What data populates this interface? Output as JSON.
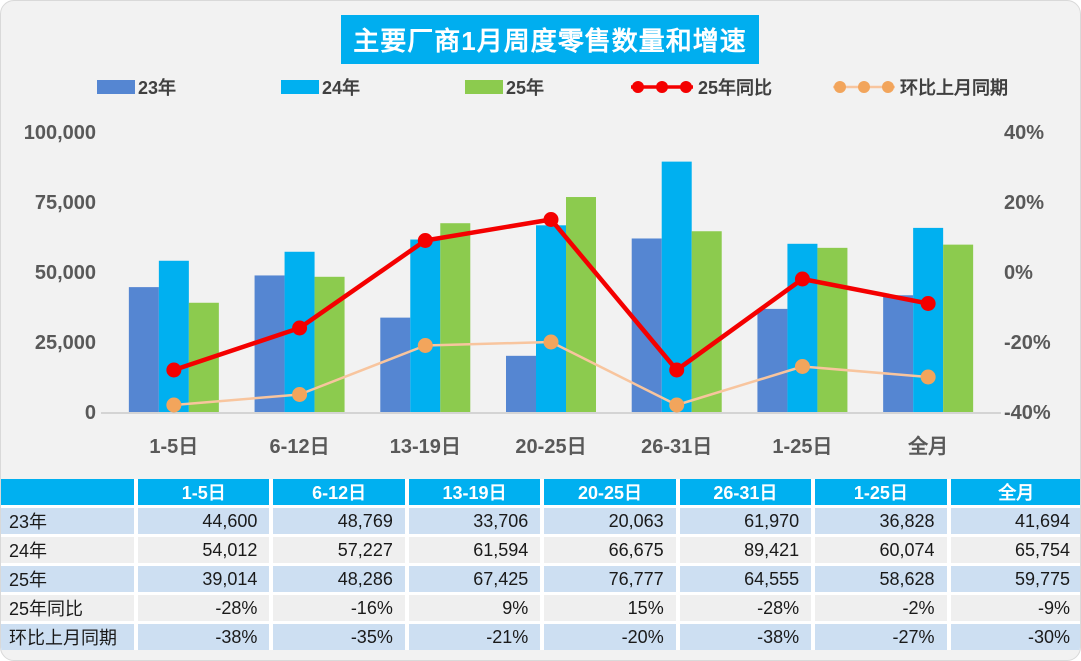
{
  "title": "主要厂商1月周度零售数量和增速",
  "legend": [
    {
      "label": "23年",
      "type": "bar-swatch",
      "color": "#5586D2"
    },
    {
      "label": "24年",
      "type": "bar-swatch",
      "color": "#00B0F0"
    },
    {
      "label": "25年",
      "type": "bar-swatch",
      "color": "#8CCB4E"
    },
    {
      "label": "25年同比",
      "type": "line-marker",
      "color": "#F40000",
      "line_color": "#F40000"
    },
    {
      "label": "环比上月同期",
      "type": "line-marker",
      "color": "#F2A55C",
      "line_color": "#F8C59E"
    }
  ],
  "chart_data": {
    "type": "bar",
    "subtype": "grouped-bars-with-overlay-lines",
    "categories": [
      "1-5日",
      "6-12日",
      "13-19日",
      "20-25日",
      "26-31日",
      "1-25日",
      "全月"
    ],
    "series": [
      {
        "name": "23年",
        "type": "bar",
        "axis": "left",
        "color": "#5586D2",
        "values": [
          44600,
          48769,
          33706,
          20063,
          61970,
          36828,
          41694
        ]
      },
      {
        "name": "24年",
        "type": "bar",
        "axis": "left",
        "color": "#00B0F0",
        "values": [
          54012,
          57227,
          61594,
          66675,
          89421,
          60074,
          65754
        ]
      },
      {
        "name": "25年",
        "type": "bar",
        "axis": "left",
        "color": "#8CCB4E",
        "values": [
          39014,
          48286,
          67425,
          76777,
          64555,
          58628,
          59775
        ]
      },
      {
        "name": "25年同比",
        "type": "line",
        "axis": "right",
        "color": "#F40000",
        "line_width": 4.5,
        "marker_r": 7.5,
        "values": [
          -28,
          -16,
          9,
          15,
          -28,
          -2,
          -9
        ]
      },
      {
        "name": "环比上月同期",
        "type": "line",
        "axis": "right",
        "color": "#F2A55C",
        "line_color": "#F8C59E",
        "line_width": 2.5,
        "marker_r": 7.5,
        "values": [
          -38,
          -35,
          -21,
          -20,
          -38,
          -27,
          -30
        ]
      }
    ],
    "left_axis": {
      "min": 0,
      "max": 100000,
      "ticks": [
        {
          "label": "0",
          "value": 0
        },
        {
          "label": "25,000",
          "value": 25000
        },
        {
          "label": "50,000",
          "value": 50000
        },
        {
          "label": "75,000",
          "value": 75000
        },
        {
          "label": "100,000",
          "value": 100000
        }
      ]
    },
    "right_axis": {
      "min": -40,
      "max": 40,
      "unit": "%",
      "ticks": [
        {
          "label": "-40%",
          "value": -40
        },
        {
          "label": "-20%",
          "value": -20
        },
        {
          "label": "0%",
          "value": 0
        },
        {
          "label": "20%",
          "value": 20
        },
        {
          "label": "40%",
          "value": 40
        }
      ]
    },
    "grid": false,
    "legend_position": "top"
  },
  "table": {
    "header": [
      "",
      "1-5日",
      "6-12日",
      "13-19日",
      "20-25日",
      "26-31日",
      "1-25日",
      "全月"
    ],
    "rows": [
      {
        "label": "23年",
        "values": [
          "44,600",
          "48,769",
          "33,706",
          "20,063",
          "61,970",
          "36,828",
          "41,694"
        ]
      },
      {
        "label": "24年",
        "values": [
          "54,012",
          "57,227",
          "61,594",
          "66,675",
          "89,421",
          "60,074",
          "65,754"
        ]
      },
      {
        "label": "25年",
        "values": [
          "39,014",
          "48,286",
          "67,425",
          "76,777",
          "64,555",
          "58,628",
          "59,775"
        ]
      },
      {
        "label": "25年同比",
        "values": [
          "-28%",
          "-16%",
          "9%",
          "15%",
          "-28%",
          "-2%",
          "-9%"
        ]
      },
      {
        "label": "环比上月同期",
        "values": [
          "-38%",
          "-35%",
          "-21%",
          "-20%",
          "-38%",
          "-27%",
          "-30%"
        ]
      }
    ]
  },
  "colors": {
    "card_bg": "#F2F2F2",
    "card_border": "#D9D9D9",
    "title_bg": "#00AEEF",
    "title_text": "#FFFFFF",
    "axis_text": "#595959",
    "legend_text": "#404040",
    "table_header_bg": "#00B0F0",
    "table_header_text": "#FFFFFF",
    "row_blue": "#CDDFF2",
    "row_light": "#EFEFEF",
    "table_text": "#1A1A1A",
    "axis_line": "#C9C9C9"
  }
}
